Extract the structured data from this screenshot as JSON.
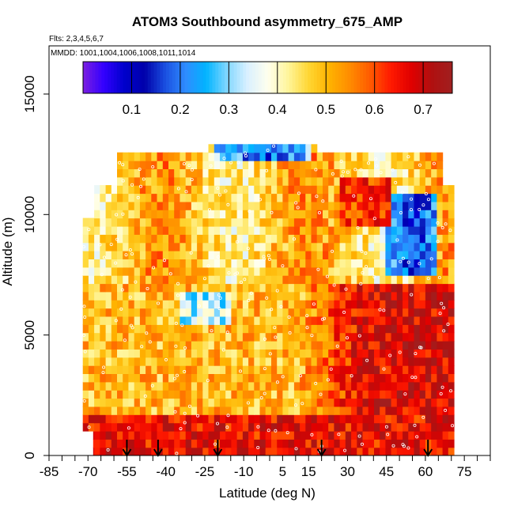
{
  "chart_data": {
    "type": "heatmap",
    "title": "ATOM3 Southbound asymmetry_675_AMP",
    "subtitle_flights": "Flts: 2,3,4,5,6,7",
    "subtitle_dates": "MMDD: 1001,1004,1006,1008,1011,1014",
    "xlabel": "Latitude (deg N)",
    "ylabel": "Altitude (m)",
    "xlim": [
      -85,
      85
    ],
    "ylim": [
      0,
      17000
    ],
    "x_ticks": [
      "-85",
      "-70",
      "-55",
      "-40",
      "-25",
      "-10",
      "5",
      "15",
      "30",
      "45",
      "60",
      "75"
    ],
    "x_tick_values": [
      -85,
      -70,
      -55,
      -40,
      -25,
      -10,
      5,
      15,
      30,
      45,
      60,
      75
    ],
    "x_minor_tick_values": [
      -80,
      -75,
      -65,
      -60,
      -50,
      -45,
      -35,
      -30,
      -20,
      -15,
      -5,
      0,
      10,
      20,
      25,
      35,
      40,
      50,
      55,
      65,
      70,
      80,
      85
    ],
    "y_ticks": [
      "0",
      "5000",
      "10000",
      "15000"
    ],
    "y_tick_values": [
      0,
      5000,
      10000,
      15000
    ],
    "colorbar": {
      "range": [
        0.0,
        0.76
      ],
      "ticks": [
        "0.1",
        "0.2",
        "0.3",
        "0.4",
        "0.5",
        "0.6",
        "0.7"
      ],
      "tick_values": [
        0.1,
        0.2,
        0.3,
        0.4,
        0.5,
        0.6,
        0.7
      ],
      "colors": [
        "#7b1fe0",
        "#3300ff",
        "#0000cc",
        "#0000aa",
        "#1a4fe0",
        "#2f8cff",
        "#00b4ff",
        "#7fd6ff",
        "#d9f0ff",
        "#ffffee",
        "#fff59a",
        "#ffd633",
        "#ffb300",
        "#ff8c00",
        "#ff5a00",
        "#ff1a00",
        "#e00000",
        "#b01010",
        "#a02020"
      ]
    },
    "flight_markers_lat": [
      -55,
      -43,
      -20,
      20,
      61
    ],
    "data_extent": {
      "lat_min": -72,
      "lat_max": 71,
      "alt_min": 0,
      "alt_max": 12900
    },
    "description_regions": [
      {
        "lat": [
          43,
          65
        ],
        "alt": [
          7000,
          11000
        ],
        "value": 0.15,
        "note": "blue column"
      },
      {
        "lat": [
          -25,
          15
        ],
        "alt": [
          12200,
          12900
        ],
        "value": 0.2,
        "note": "top blue band"
      },
      {
        "lat": [
          -72,
          71
        ],
        "alt": [
          0,
          1500
        ],
        "value": 0.7,
        "note": "red low layer"
      },
      {
        "lat": [
          20,
          60
        ],
        "alt": [
          1500,
          7000
        ],
        "value": 0.68,
        "note": "red mid layer"
      }
    ]
  }
}
